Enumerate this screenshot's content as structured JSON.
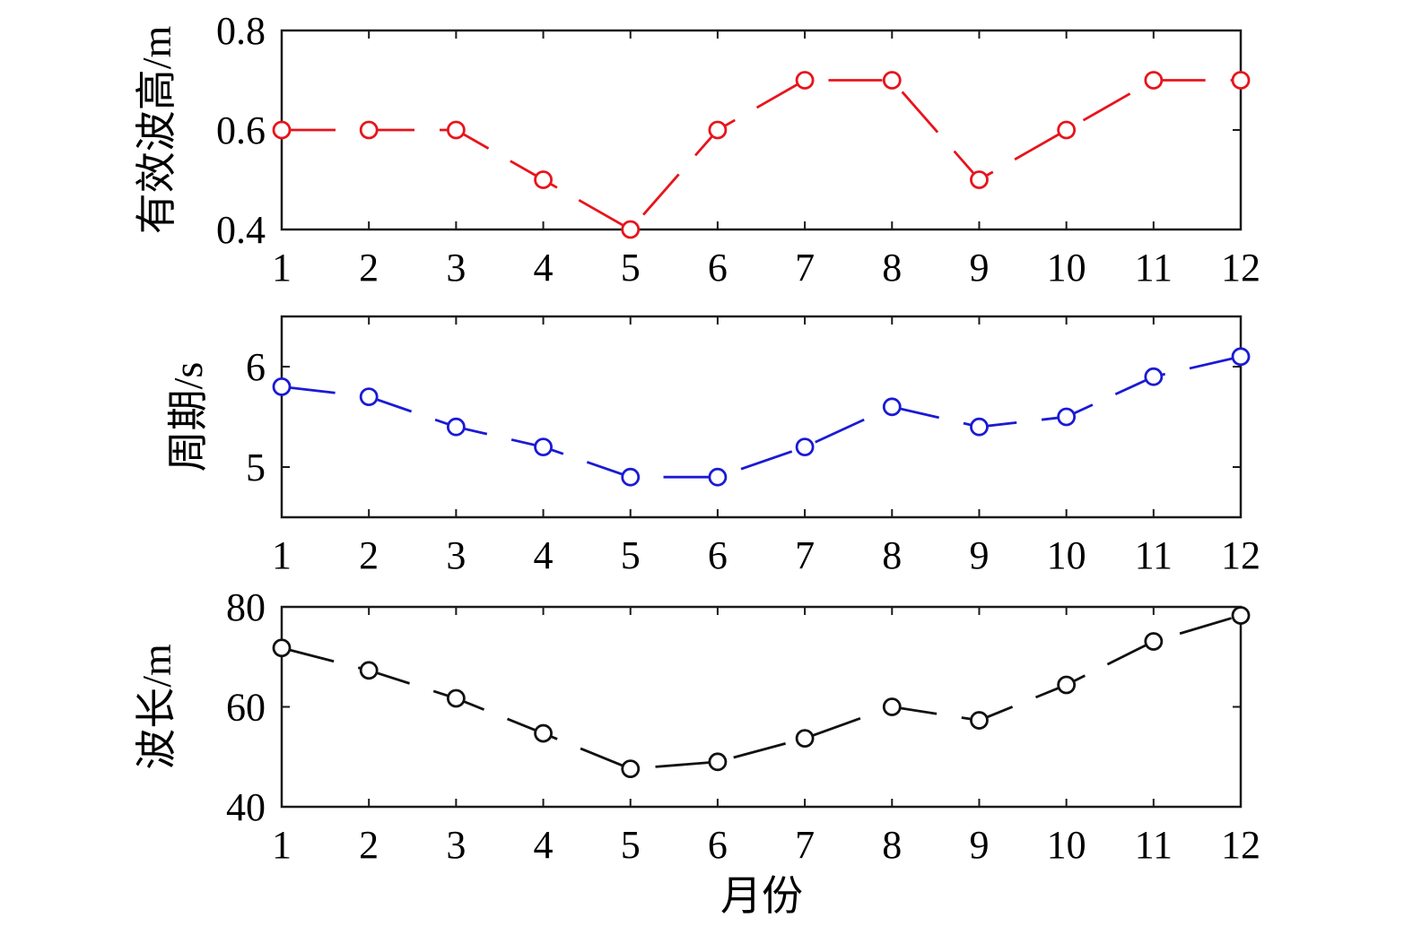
{
  "chart_data": [
    {
      "type": "line",
      "ylabel": "有效波高/m",
      "xlabel": "",
      "x": [
        1,
        2,
        3,
        4,
        5,
        6,
        7,
        8,
        9,
        10,
        11,
        12
      ],
      "xlim": [
        1,
        12
      ],
      "ylim": [
        0.4,
        0.8
      ],
      "yticks": [
        "0.4",
        "0.6",
        "0.8"
      ],
      "xticks": [
        "1",
        "2",
        "3",
        "4",
        "5",
        "6",
        "7",
        "8",
        "9",
        "10",
        "11",
        "12"
      ],
      "series": [
        {
          "values": [
            0.6,
            0.6,
            0.6,
            0.5,
            0.4,
            0.6,
            0.7,
            0.7,
            0.5,
            0.6,
            0.7,
            0.7
          ],
          "color": "#e8141b",
          "marker": "circle-open",
          "line_style": "dashed"
        }
      ],
      "grid": false
    },
    {
      "type": "line",
      "ylabel": "周期/s",
      "xlabel": "",
      "x": [
        1,
        2,
        3,
        4,
        5,
        6,
        7,
        8,
        9,
        10,
        11,
        12
      ],
      "xlim": [
        1,
        12
      ],
      "ylim": [
        4.5,
        6.5
      ],
      "yticks": [
        "5",
        "6"
      ],
      "xticks": [
        "1",
        "2",
        "3",
        "4",
        "5",
        "6",
        "7",
        "8",
        "9",
        "10",
        "11",
        "12"
      ],
      "series": [
        {
          "values": [
            5.8,
            5.7,
            5.4,
            5.2,
            4.9,
            4.9,
            5.2,
            5.6,
            5.4,
            5.5,
            5.9,
            6.1
          ],
          "color": "#1a1ad6",
          "marker": "circle-open",
          "line_style": "dashed"
        }
      ],
      "grid": false
    },
    {
      "type": "line",
      "ylabel": "波长/m",
      "xlabel": "月份",
      "x": [
        1,
        2,
        3,
        4,
        5,
        6,
        7,
        8,
        9,
        10,
        11,
        12
      ],
      "xlim": [
        1,
        12
      ],
      "ylim": [
        40,
        80
      ],
      "yticks": [
        "40",
        "60",
        "80"
      ],
      "xticks": [
        "1",
        "2",
        "3",
        "4",
        "5",
        "6",
        "7",
        "8",
        "9",
        "10",
        "11",
        "12"
      ],
      "series": [
        {
          "values": [
            71.8,
            67.3,
            61.7,
            54.7,
            47.6,
            49.0,
            53.7,
            60.0,
            57.3,
            64.4,
            73.1,
            78.3
          ],
          "color": "#111111",
          "marker": "circle-open",
          "line_style": "dashed"
        }
      ],
      "grid": false
    }
  ]
}
